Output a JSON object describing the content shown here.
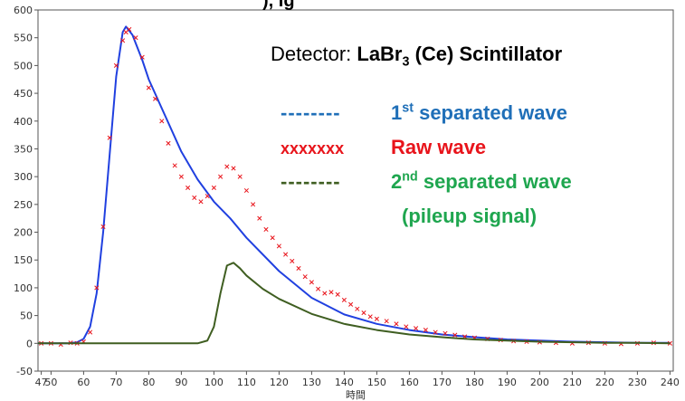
{
  "header_fragment": "), Ig",
  "annotation": {
    "prefix": "Detector: ",
    "material_base": "LaBr",
    "material_sub": "3",
    "material_rest": " (Ce) Scintillator"
  },
  "legend": [
    {
      "symbol": "--------",
      "num": "1",
      "sup": "st",
      "rest": " separated wave",
      "color": "#1f6fb8"
    },
    {
      "symbol": "xxxxxxx",
      "num": "",
      "sup": "",
      "rest": "Raw wave",
      "color": "#e8141b"
    },
    {
      "symbol": "--------",
      "num": "2",
      "sup": "nd",
      "rest": " separated wave",
      "color": "#1fa64f",
      "line2": "(pileup signal)"
    }
  ],
  "chart_data": {
    "type": "line",
    "xlabel": "時間",
    "ylabel": "",
    "xlim": [
      46,
      241
    ],
    "ylim": [
      -50,
      600
    ],
    "xticks": [
      47,
      50,
      60,
      70,
      80,
      90,
      100,
      110,
      120,
      130,
      140,
      150,
      160,
      170,
      180,
      190,
      200,
      210,
      220,
      230,
      240
    ],
    "yticks": [
      -50,
      0,
      50,
      100,
      150,
      200,
      250,
      300,
      350,
      400,
      450,
      500,
      550,
      600
    ],
    "grid": false,
    "series": [
      {
        "name": "1st separated wave",
        "style": "line",
        "color": "#2040e0",
        "x": [
          46,
          55,
          58,
          60,
          62,
          64,
          66,
          68,
          70,
          72,
          73,
          75,
          78,
          80,
          85,
          90,
          95,
          100,
          105,
          110,
          120,
          130,
          140,
          150,
          160,
          170,
          180,
          190,
          200,
          210,
          220,
          230,
          240
        ],
        "y": [
          0,
          0,
          2,
          8,
          30,
          90,
          200,
          340,
          480,
          560,
          570,
          555,
          510,
          475,
          410,
          345,
          295,
          255,
          225,
          190,
          130,
          82,
          52,
          35,
          24,
          16,
          11,
          7,
          5,
          3,
          2,
          1,
          1
        ]
      },
      {
        "name": "Raw wave",
        "style": "markers",
        "color": "#e8141b",
        "x": [
          47,
          50,
          53,
          56,
          58,
          60,
          62,
          64,
          66,
          68,
          70,
          72,
          73,
          74,
          76,
          78,
          80,
          82,
          84,
          86,
          88,
          90,
          92,
          94,
          96,
          98,
          100,
          102,
          104,
          106,
          108,
          110,
          112,
          114,
          116,
          118,
          120,
          122,
          124,
          126,
          128,
          130,
          132,
          134,
          136,
          138,
          140,
          142,
          144,
          146,
          148,
          150,
          153,
          156,
          159,
          162,
          165,
          168,
          171,
          174,
          177,
          180,
          184,
          188,
          192,
          196,
          200,
          205,
          210,
          215,
          220,
          225,
          230,
          235,
          240
        ],
        "y": [
          0,
          0,
          -2,
          1,
          0,
          3,
          20,
          100,
          210,
          370,
          500,
          545,
          560,
          565,
          550,
          515,
          460,
          440,
          400,
          360,
          320,
          300,
          280,
          262,
          255,
          265,
          280,
          300,
          318,
          315,
          300,
          275,
          250,
          225,
          205,
          190,
          175,
          160,
          148,
          135,
          120,
          110,
          98,
          90,
          92,
          88,
          78,
          70,
          62,
          55,
          48,
          44,
          40,
          35,
          30,
          27,
          24,
          20,
          18,
          15,
          12,
          10,
          8,
          6,
          4,
          3,
          2,
          1,
          0,
          1,
          0,
          -1,
          0,
          1,
          0
        ]
      },
      {
        "name": "2nd separated wave (pileup signal)",
        "style": "line",
        "color": "#3f5e21",
        "x": [
          46,
          95,
          98,
          100,
          102,
          104,
          106,
          108,
          110,
          115,
          120,
          130,
          140,
          150,
          160,
          170,
          180,
          190,
          200,
          210,
          220,
          230,
          240
        ],
        "y": [
          0,
          0,
          5,
          30,
          90,
          140,
          145,
          135,
          122,
          98,
          80,
          53,
          35,
          24,
          16,
          11,
          7,
          5,
          3,
          2,
          1,
          1,
          0
        ]
      }
    ]
  }
}
